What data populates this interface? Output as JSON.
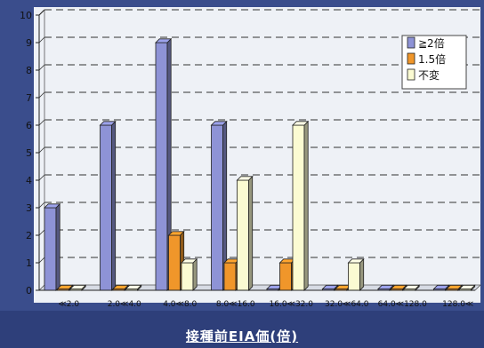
{
  "chart_data": {
    "type": "bar",
    "categories": [
      "≪2.0",
      "2.0≪4.0",
      "4.0≪8.0",
      "8.0≪16.0",
      "16.0≪32.0",
      "32.0≪64.0",
      "64.0≪128.0",
      "128.0≪"
    ],
    "series": [
      {
        "name": "≧2倍",
        "values": [
          3,
          6,
          9,
          6,
          0,
          0,
          0,
          0
        ],
        "color": "#8e93d6"
      },
      {
        "name": "1.5倍",
        "values": [
          0,
          0,
          2,
          1,
          1,
          0,
          0,
          0
        ],
        "color": "#f0962a"
      },
      {
        "name": "不変",
        "values": [
          0,
          0,
          1,
          4,
          6,
          1,
          0,
          0
        ],
        "color": "#fbfbd2"
      }
    ],
    "y_ticks": [
      "0",
      "1",
      "2",
      "3",
      "4",
      "5",
      "6",
      "7",
      "8",
      "9",
      "10"
    ],
    "ylim": [
      0,
      10
    ],
    "xlabel": "接種前EIA価(倍)",
    "ylabel": "",
    "grid": true,
    "legend_position": "top-right",
    "colors": {
      "background": "#2e3f7a",
      "plot_area": "#eef1f6",
      "grid": "#333333"
    }
  }
}
